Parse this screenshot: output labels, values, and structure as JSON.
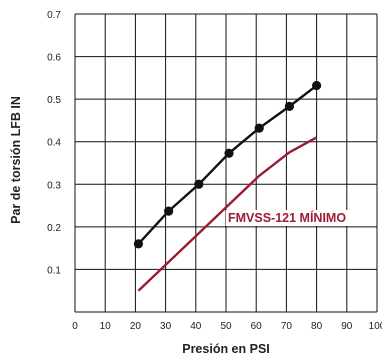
{
  "chart_data": {
    "type": "line",
    "xlabel": "Presión en PSI",
    "ylabel": "Par de torsión LFB IN",
    "xlim": [
      0,
      100
    ],
    "ylim": [
      0,
      0.7
    ],
    "x_ticks": [
      "0",
      "10",
      "20",
      "30",
      "40",
      "50",
      "60",
      "70",
      "80",
      "90",
      "100"
    ],
    "y_ticks": [
      "0.1",
      "0.2",
      "0.3",
      "0.4",
      "0.5",
      "0.6",
      "0.7"
    ],
    "y_tick_values": [
      0.1,
      0.2,
      0.3,
      0.4,
      0.5,
      0.6,
      0.7
    ],
    "grid": true,
    "series": [
      {
        "x": [
          21,
          31,
          41,
          51,
          61,
          71,
          80
        ],
        "y": [
          0.16,
          0.237,
          0.3,
          0.373,
          0.432,
          0.483,
          0.532
        ],
        "color": "#111111",
        "markers": true
      },
      {
        "name": "FMVSS-121 MÍNIMO",
        "x": [
          21,
          41,
          61,
          71,
          80
        ],
        "y": [
          0.05,
          0.185,
          0.32,
          0.375,
          0.41
        ],
        "color": "#9b1c35",
        "markers": false
      }
    ]
  }
}
